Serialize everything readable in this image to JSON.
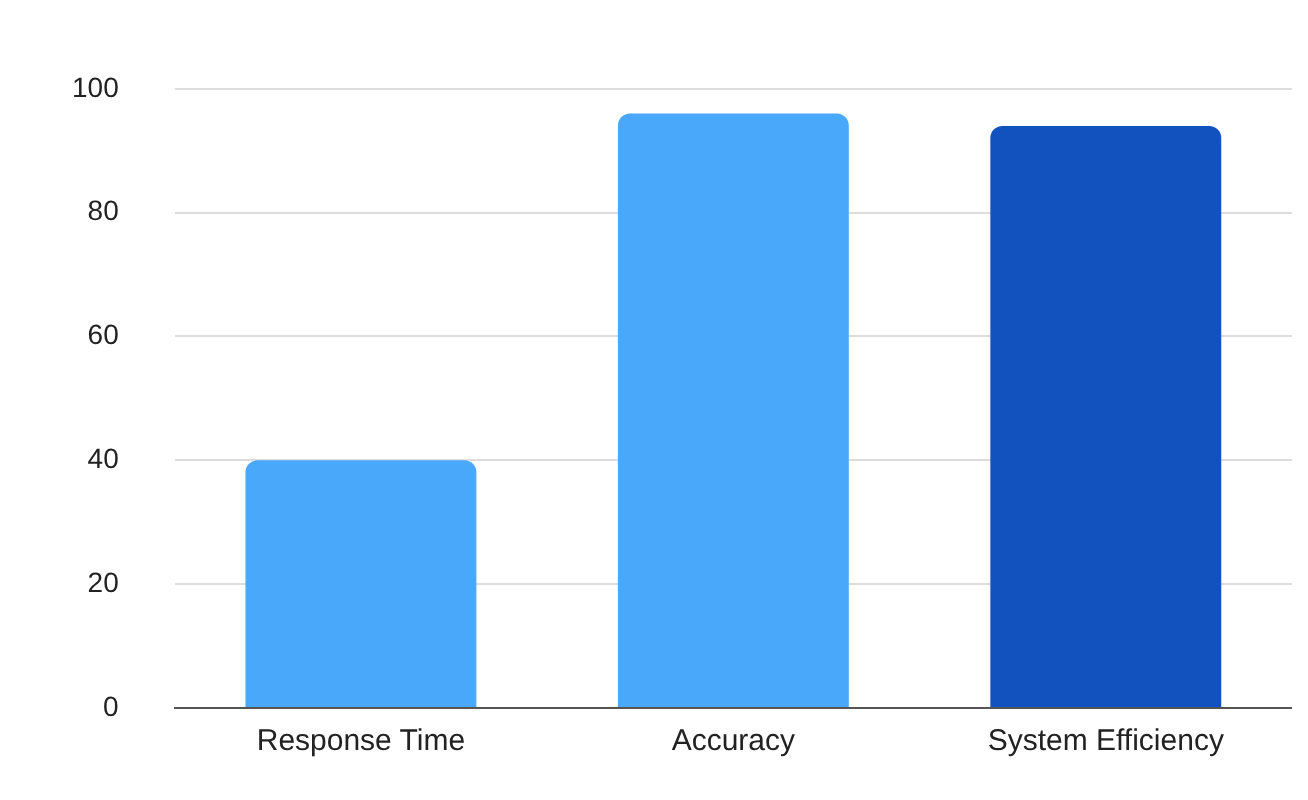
{
  "chart_data": {
    "type": "bar",
    "categories": [
      "Response Time",
      "Accuracy",
      "System Efficiency"
    ],
    "values": [
      40,
      96,
      94
    ],
    "colors": [
      "#4aa8fb",
      "#4aa8fb",
      "#1152bf"
    ],
    "ylim": [
      0,
      100
    ],
    "yticks": [
      0,
      20,
      40,
      60,
      80,
      100
    ],
    "grid": "y",
    "legend": false
  }
}
